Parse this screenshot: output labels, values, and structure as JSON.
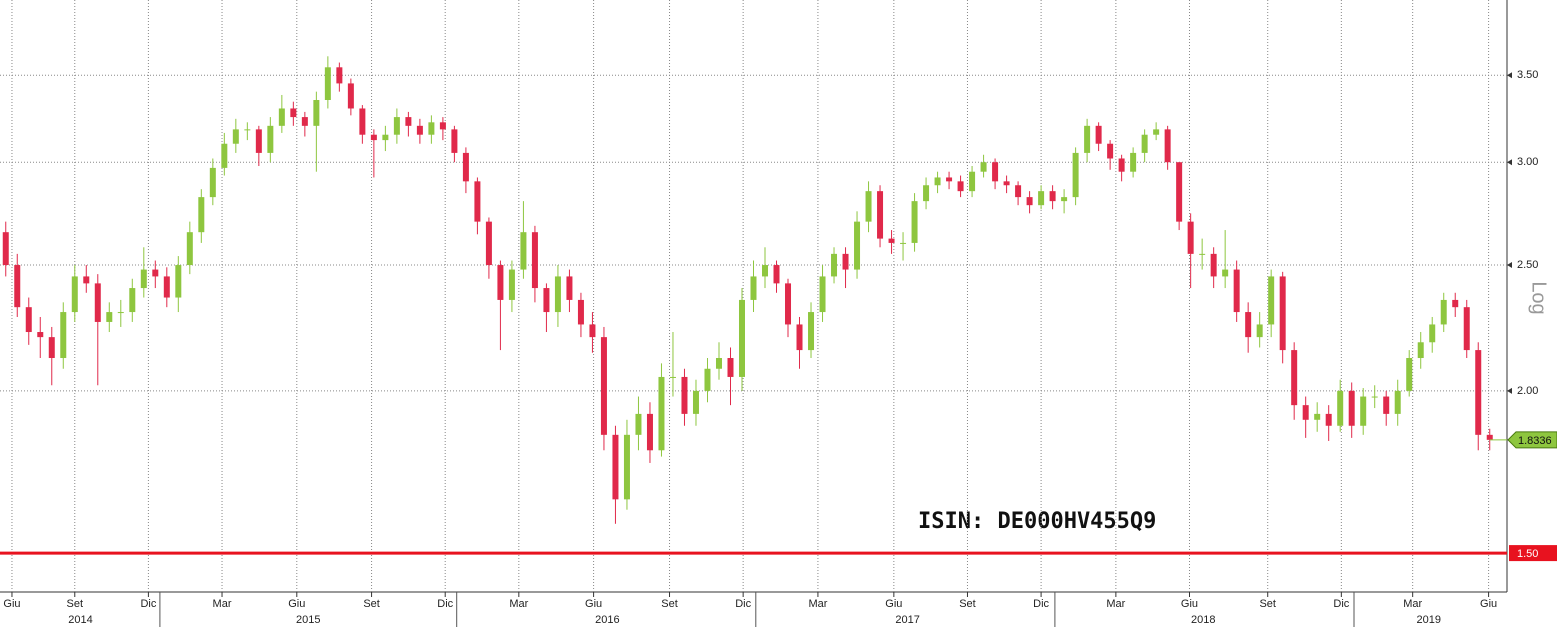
{
  "chart_data": {
    "type": "candlestick",
    "annotation": "ISIN: DE000HV455Q9",
    "y_axis_label": "Log",
    "log_scale": true,
    "grid": true,
    "up_color": "#8ec63f",
    "down_color": "#e0294a",
    "open": [
      2.65,
      2.5,
      2.32,
      2.22,
      2.2,
      2.12,
      2.3,
      2.45,
      2.42,
      2.26,
      2.3,
      2.3,
      2.4,
      2.48,
      2.45,
      2.36,
      2.5,
      2.65,
      2.82,
      2.97,
      3.1,
      3.18,
      3.18,
      3.05,
      3.2,
      3.3,
      3.25,
      3.2,
      3.35,
      3.55,
      3.45,
      3.3,
      3.15,
      3.12,
      3.15,
      3.25,
      3.2,
      3.15,
      3.22,
      3.18,
      3.05,
      2.9,
      2.7,
      2.5,
      2.35,
      2.48,
      2.65,
      2.4,
      2.3,
      2.45,
      2.35,
      2.25,
      2.2,
      1.85,
      1.65,
      1.85,
      1.92,
      1.8,
      2.05,
      2.05,
      1.92,
      2.0,
      2.08,
      2.12,
      2.05,
      2.35,
      2.45,
      2.5,
      2.42,
      2.25,
      2.15,
      2.3,
      2.45,
      2.55,
      2.48,
      2.7,
      2.85,
      2.62,
      2.6,
      2.6,
      2.8,
      2.88,
      2.92,
      2.9,
      2.85,
      2.95,
      3.0,
      2.9,
      2.88,
      2.82,
      2.78,
      2.85,
      2.8,
      2.82,
      3.05,
      3.2,
      3.1,
      3.02,
      2.95,
      3.05,
      3.15,
      3.18,
      3.0,
      2.7,
      2.55,
      2.55,
      2.45,
      2.48,
      2.3,
      2.2,
      2.25,
      2.45,
      2.15,
      1.95,
      1.9,
      1.92,
      1.88,
      2.0,
      1.88,
      1.98,
      1.98,
      1.92,
      2.0,
      2.12,
      2.18,
      2.25,
      2.35,
      2.32,
      2.15,
      1.85
    ],
    "high": [
      2.7,
      2.55,
      2.36,
      2.28,
      2.24,
      2.34,
      2.5,
      2.5,
      2.46,
      2.34,
      2.35,
      2.44,
      2.58,
      2.52,
      2.49,
      2.54,
      2.7,
      2.86,
      3.02,
      3.16,
      3.24,
      3.22,
      3.2,
      3.25,
      3.38,
      3.34,
      3.28,
      3.4,
      3.62,
      3.58,
      3.48,
      3.32,
      3.18,
      3.2,
      3.3,
      3.28,
      3.24,
      3.26,
      3.25,
      3.2,
      3.08,
      2.92,
      2.72,
      2.52,
      2.52,
      2.8,
      2.68,
      2.42,
      2.5,
      2.48,
      2.38,
      2.3,
      2.24,
      1.88,
      1.9,
      1.98,
      1.96,
      2.1,
      2.22,
      2.08,
      2.04,
      2.12,
      2.18,
      2.16,
      2.4,
      2.52,
      2.58,
      2.52,
      2.44,
      2.28,
      2.34,
      2.5,
      2.58,
      2.58,
      2.75,
      2.9,
      2.88,
      2.66,
      2.65,
      2.84,
      2.92,
      2.95,
      2.95,
      2.93,
      2.98,
      3.04,
      3.02,
      2.93,
      2.9,
      2.85,
      2.88,
      2.88,
      2.86,
      3.08,
      3.24,
      3.22,
      3.12,
      3.04,
      3.08,
      3.18,
      3.22,
      3.2,
      3.0,
      2.74,
      2.62,
      2.58,
      2.66,
      2.52,
      2.34,
      2.3,
      2.48,
      2.47,
      2.18,
      1.98,
      1.96,
      1.95,
      2.04,
      2.03,
      2.01,
      2.02,
      2.0,
      2.04,
      2.15,
      2.22,
      2.28,
      2.38,
      2.38,
      2.35,
      2.18,
      1.87
    ],
    "low": [
      2.45,
      2.28,
      2.17,
      2.12,
      2.02,
      2.08,
      2.26,
      2.38,
      2.02,
      2.22,
      2.24,
      2.26,
      2.36,
      2.4,
      2.32,
      2.3,
      2.46,
      2.6,
      2.78,
      2.93,
      3.05,
      3.12,
      2.98,
      3.0,
      3.16,
      3.2,
      3.14,
      2.95,
      3.3,
      3.4,
      3.26,
      3.1,
      2.92,
      3.06,
      3.1,
      3.14,
      3.1,
      3.1,
      3.12,
      3.0,
      2.84,
      2.64,
      2.44,
      2.15,
      2.3,
      2.44,
      2.34,
      2.22,
      2.24,
      2.3,
      2.2,
      2.14,
      1.8,
      1.58,
      1.62,
      1.8,
      1.76,
      1.78,
      1.98,
      1.88,
      1.88,
      1.96,
      2.04,
      1.95,
      2.0,
      2.3,
      2.4,
      2.38,
      2.2,
      2.08,
      2.12,
      2.26,
      2.42,
      2.4,
      2.44,
      2.65,
      2.58,
      2.55,
      2.52,
      2.56,
      2.76,
      2.84,
      2.86,
      2.82,
      2.82,
      2.92,
      2.86,
      2.84,
      2.78,
      2.74,
      2.76,
      2.76,
      2.74,
      2.78,
      3.0,
      3.06,
      2.96,
      2.9,
      2.92,
      3.0,
      3.12,
      2.96,
      2.66,
      2.4,
      2.48,
      2.4,
      2.4,
      2.26,
      2.14,
      2.16,
      2.2,
      2.1,
      1.9,
      1.84,
      1.86,
      1.83,
      1.86,
      1.84,
      1.85,
      1.94,
      1.88,
      1.88,
      1.98,
      2.08,
      2.14,
      2.22,
      2.28,
      2.12,
      1.8,
      1.8
    ],
    "close": [
      2.5,
      2.32,
      2.22,
      2.2,
      2.12,
      2.3,
      2.45,
      2.42,
      2.26,
      2.3,
      2.3,
      2.4,
      2.48,
      2.45,
      2.36,
      2.5,
      2.65,
      2.82,
      2.97,
      3.1,
      3.18,
      3.18,
      3.05,
      3.2,
      3.3,
      3.25,
      3.2,
      3.35,
      3.55,
      3.45,
      3.3,
      3.15,
      3.12,
      3.15,
      3.25,
      3.2,
      3.15,
      3.22,
      3.18,
      3.05,
      2.9,
      2.7,
      2.5,
      2.35,
      2.48,
      2.65,
      2.4,
      2.3,
      2.45,
      2.35,
      2.25,
      2.2,
      1.85,
      1.65,
      1.85,
      1.92,
      1.8,
      2.05,
      2.05,
      1.92,
      2.0,
      2.08,
      2.12,
      2.05,
      2.35,
      2.45,
      2.5,
      2.42,
      2.25,
      2.15,
      2.3,
      2.45,
      2.55,
      2.48,
      2.7,
      2.85,
      2.62,
      2.6,
      2.6,
      2.8,
      2.88,
      2.92,
      2.9,
      2.85,
      2.95,
      3.0,
      2.9,
      2.88,
      2.82,
      2.78,
      2.85,
      2.8,
      2.82,
      3.05,
      3.2,
      3.1,
      3.02,
      2.95,
      3.05,
      3.15,
      3.18,
      3.0,
      2.7,
      2.55,
      2.55,
      2.45,
      2.48,
      2.3,
      2.2,
      2.25,
      2.45,
      2.15,
      1.95,
      1.9,
      1.92,
      1.88,
      2.0,
      1.88,
      1.98,
      1.98,
      1.92,
      2.0,
      2.12,
      2.18,
      2.25,
      2.35,
      2.32,
      2.15,
      1.85,
      1.8336
    ],
    "xlim": [
      0,
      131
    ],
    "xticks": [
      {
        "value": 1.04,
        "label": "Giu"
      },
      {
        "value": 6.5,
        "label": "Set"
      },
      {
        "value": 12.9,
        "label": "Dic"
      },
      {
        "value": 19.3,
        "label": "Mar"
      },
      {
        "value": 25.8,
        "label": "Giu"
      },
      {
        "value": 32.3,
        "label": "Set"
      },
      {
        "value": 38.7,
        "label": "Dic"
      },
      {
        "value": 45.1,
        "label": "Mar"
      },
      {
        "value": 51.6,
        "label": "Giu"
      },
      {
        "value": 58.2,
        "label": "Set"
      },
      {
        "value": 64.6,
        "label": "Dic"
      },
      {
        "value": 71.1,
        "label": "Mar"
      },
      {
        "value": 77.7,
        "label": "Giu"
      },
      {
        "value": 84.1,
        "label": "Set"
      },
      {
        "value": 90.5,
        "label": "Dic"
      },
      {
        "value": 97,
        "label": "Mar"
      },
      {
        "value": 103.4,
        "label": "Giu"
      },
      {
        "value": 110.2,
        "label": "Set"
      },
      {
        "value": 116.6,
        "label": "Dic"
      },
      {
        "value": 122.8,
        "label": "Mar"
      },
      {
        "value": 129.4,
        "label": "Giu"
      }
    ],
    "year_labels": [
      {
        "value": 7,
        "label": "2014"
      },
      {
        "value": 26.8,
        "label": "2015"
      },
      {
        "value": 52.8,
        "label": "2016"
      },
      {
        "value": 78.9,
        "label": "2017"
      },
      {
        "value": 104.6,
        "label": "2018"
      },
      {
        "value": 124.2,
        "label": "2019"
      }
    ],
    "year_boundaries": [
      13.9,
      39.7,
      65.7,
      91.7,
      117.7
    ],
    "ylim": [
      1.4,
      4.0
    ],
    "yticks": [
      {
        "value": 2,
        "label": "2.00"
      },
      {
        "value": 2.5,
        "label": "2.50"
      },
      {
        "value": 3,
        "label": "3.00"
      },
      {
        "value": 3.5,
        "label": "3.50"
      }
    ],
    "reference_line": {
      "value": 1.5,
      "label": "1.50",
      "color": "#e8121f"
    }
  }
}
